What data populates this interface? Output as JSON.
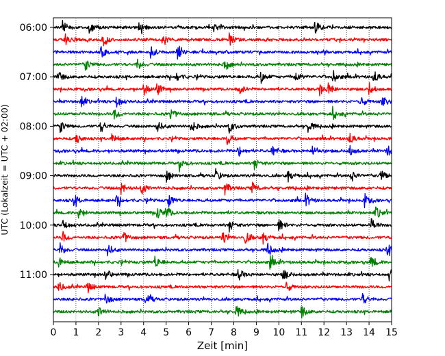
{
  "chart_data": {
    "type": "line",
    "title": "",
    "xlabel": "Zeit  [min]",
    "ylabel": "UTC (Lokalzeit = UTC + 02:00)",
    "xlim": [
      0,
      15
    ],
    "x_ticks": [
      "0",
      "1",
      "2",
      "3",
      "4",
      "5",
      "6",
      "7",
      "8",
      "9",
      "10",
      "11",
      "12",
      "13",
      "14",
      "15"
    ],
    "y_tick_labels": [
      "06:00",
      "07:00",
      "08:00",
      "09:00",
      "10:00",
      "11:00"
    ],
    "trace_interval_minutes": 15,
    "trace_count": 24,
    "grid": "vertical dotted lines at each minute",
    "trace_colors": [
      "#000000",
      "#ff0000",
      "#0000ff",
      "#008000"
    ],
    "traces": [
      {
        "start": "06:00",
        "color": "#000000",
        "events_min": [
          0.4,
          1.6,
          3.8,
          7.1,
          11.6
        ]
      },
      {
        "start": "06:15",
        "color": "#ff0000",
        "events_min": [
          0.5,
          2.2,
          4.8,
          7.8
        ]
      },
      {
        "start": "06:30",
        "color": "#0000ff",
        "events_min": [
          2.1,
          4.3,
          5.5
        ]
      },
      {
        "start": "06:45",
        "color": "#008000",
        "events_min": [
          1.4,
          3.7,
          7.6
        ]
      },
      {
        "start": "07:00",
        "color": "#000000",
        "events_min": [
          0.2,
          5.4,
          9.2,
          10.7,
          12.4,
          14.2
        ]
      },
      {
        "start": "07:15",
        "color": "#ff0000",
        "events_min": [
          4.0,
          4.6,
          8.2,
          11.8,
          12.2,
          14.0
        ]
      },
      {
        "start": "07:30",
        "color": "#0000ff",
        "events_min": [
          1.2,
          2.8,
          13.6,
          14.6
        ]
      },
      {
        "start": "07:45",
        "color": "#008000",
        "events_min": [
          2.7,
          5.2,
          12.4
        ]
      },
      {
        "start": "08:00",
        "color": "#000000",
        "events_min": [
          0.3,
          2.1,
          4.6,
          6.1,
          7.8,
          11.3
        ]
      },
      {
        "start": "08:15",
        "color": "#ff0000",
        "events_min": [
          1.0,
          2.6,
          7.7,
          13.1
        ]
      },
      {
        "start": "08:30",
        "color": "#0000ff",
        "events_min": [
          8.2,
          9.7,
          11.5,
          13.1,
          14.8
        ]
      },
      {
        "start": "08:45",
        "color": "#008000",
        "events_min": [
          5.6,
          8.9
        ]
      },
      {
        "start": "09:00",
        "color": "#000000",
        "events_min": [
          5.0,
          7.2,
          10.4,
          13.2,
          14.5
        ]
      },
      {
        "start": "09:15",
        "color": "#ff0000",
        "events_min": [
          3.0,
          3.9,
          7.6,
          8.8
        ]
      },
      {
        "start": "09:30",
        "color": "#0000ff",
        "events_min": [
          0.9,
          2.8,
          5.1,
          11.2,
          13.8
        ]
      },
      {
        "start": "09:45",
        "color": "#008000",
        "events_min": [
          1.1,
          4.6,
          5.0,
          14.3
        ]
      },
      {
        "start": "10:00",
        "color": "#000000",
        "events_min": [
          0.4,
          7.8,
          10.0,
          14.1
        ]
      },
      {
        "start": "10:15",
        "color": "#ff0000",
        "events_min": [
          0.4,
          3.1,
          7.5,
          8.5,
          9.3
        ]
      },
      {
        "start": "10:30",
        "color": "#0000ff",
        "events_min": [
          0.3,
          2.4,
          9.5,
          14.8
        ]
      },
      {
        "start": "10:45",
        "color": "#008000",
        "events_min": [
          0.2,
          4.5,
          9.6,
          14.1
        ]
      },
      {
        "start": "11:00",
        "color": "#000000",
        "events_min": [
          2.3,
          8.2,
          10.2,
          14.9
        ]
      },
      {
        "start": "11:15",
        "color": "#ff0000",
        "events_min": [
          0.2,
          1.5,
          10.3
        ]
      },
      {
        "start": "11:30",
        "color": "#0000ff",
        "events_min": [
          2.3,
          4.1,
          13.7
        ]
      },
      {
        "start": "11:45",
        "color": "#008000",
        "events_min": [
          2.0,
          8.1,
          11.0
        ]
      }
    ]
  }
}
